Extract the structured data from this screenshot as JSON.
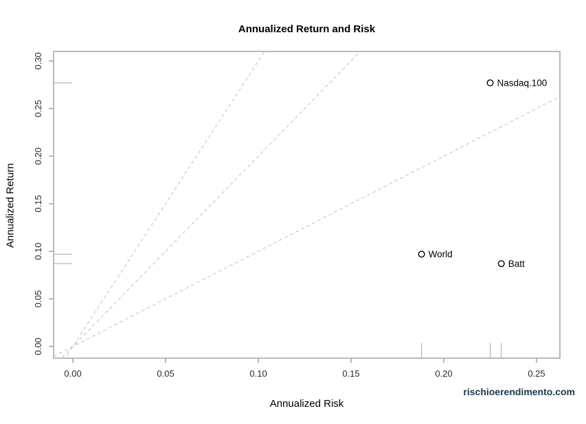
{
  "chart_data": {
    "type": "scatter",
    "title": "Annualized Return and Risk",
    "xlabel": "Annualized Risk",
    "ylabel": "Annualized Return",
    "xlim": [
      -0.0104,
      0.2626
    ],
    "ylim": [
      -0.0123,
      0.31
    ],
    "x_ticks": [
      0.0,
      0.05,
      0.1,
      0.15,
      0.2,
      0.25
    ],
    "y_ticks": [
      0.0,
      0.05,
      0.1,
      0.15,
      0.2,
      0.25,
      0.3
    ],
    "grid": false,
    "legend": "none",
    "points": [
      {
        "label": "Nasdaq.100",
        "x": 0.225,
        "y": 0.277
      },
      {
        "label": "World",
        "x": 0.188,
        "y": 0.097
      },
      {
        "label": "Batt",
        "x": 0.231,
        "y": 0.087
      }
    ],
    "reference_lines": {
      "style": "dashed",
      "through_origin_slopes": [
        1,
        2,
        3
      ]
    },
    "rug_marks_on_axes": true,
    "colors": {
      "box_and_ticks": "#9c9c9c",
      "dashed_lines": "#c6c6c6",
      "rug_marks": "#a8a8a8",
      "tick_labels": "#2b2b2b",
      "points": "#000000",
      "point_labels": "#000000"
    }
  },
  "watermark": {
    "text": "rischioerendimento.com",
    "color": "#17394c"
  }
}
